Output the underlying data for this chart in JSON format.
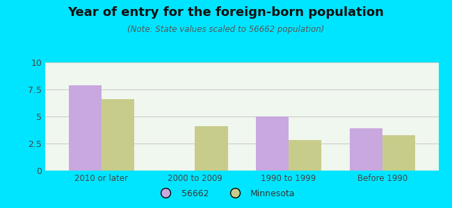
{
  "title": "Year of entry for the foreign-born population",
  "subtitle": "(Note: State values scaled to 56662 population)",
  "categories": [
    "2010 or later",
    "2000 to 2009",
    "1990 to 1999",
    "Before 1990"
  ],
  "values_56662": [
    7.9,
    0,
    5.0,
    3.9
  ],
  "values_minnesota": [
    6.6,
    4.1,
    2.85,
    3.3
  ],
  "bar_color_56662": "#c9a8e0",
  "bar_color_minnesota": "#c8cc8a",
  "background_outer": "#00e5ff",
  "background_inner": "#f0f7ee",
  "ylim": [
    0,
    10
  ],
  "yticks": [
    0,
    2.5,
    5,
    7.5,
    10
  ],
  "ytick_labels": [
    "0",
    "2.5",
    "5",
    "7.5",
    "10"
  ],
  "legend_label_56662": "56662",
  "legend_label_minnesota": "Minnesota",
  "bar_width": 0.35
}
